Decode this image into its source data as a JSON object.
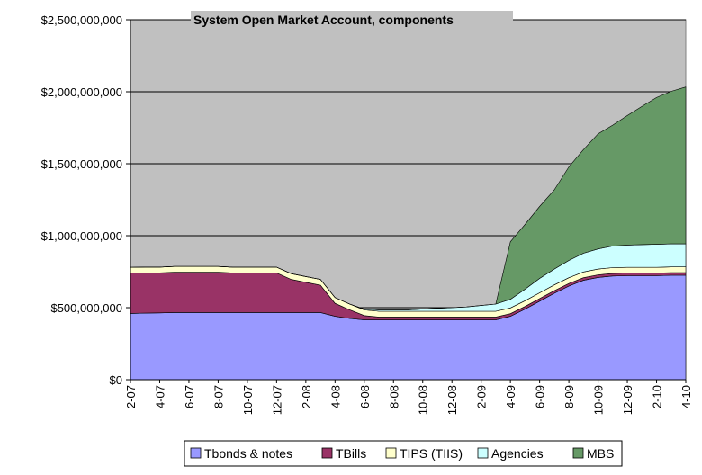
{
  "chart_data": {
    "type": "area",
    "stacked": true,
    "title": "System Open Market Account, components",
    "xlabel": "",
    "ylabel": "",
    "ylim": [
      0,
      2500000000
    ],
    "y_ticks": [
      0,
      500000000,
      1000000000,
      1500000000,
      2000000000,
      2500000000
    ],
    "y_tick_labels": [
      "$0",
      "$500,000,000",
      "$1,000,000,000",
      "$1,500,000,000",
      "$2,000,000,000",
      "$2,500,000,000"
    ],
    "x_tick_labels": [
      "2-07",
      "4-07",
      "6-07",
      "8-07",
      "10-07",
      "12-07",
      "2-08",
      "4-08",
      "6-08",
      "8-08",
      "10-08",
      "12-08",
      "2-09",
      "4-09",
      "6-09",
      "8-09",
      "10-09",
      "12-09",
      "2-10",
      "4-10"
    ],
    "grid": "horizontal",
    "legend_position": "bottom",
    "plot_background": "#c0c0c0",
    "x": [
      "2-07",
      "3-07",
      "4-07",
      "5-07",
      "6-07",
      "7-07",
      "8-07",
      "9-07",
      "10-07",
      "11-07",
      "12-07",
      "1-08",
      "2-08",
      "3-08",
      "4-08",
      "5-08",
      "6-08",
      "7-08",
      "8-08",
      "9-08",
      "10-08",
      "11-08",
      "12-08",
      "1-09",
      "2-09",
      "3-09",
      "4-09",
      "5-09",
      "6-09",
      "7-09",
      "8-09",
      "9-09",
      "10-09",
      "11-09",
      "12-09",
      "1-10",
      "2-10",
      "3-10",
      "4-10"
    ],
    "series": [
      {
        "name": "Tbonds & notes",
        "color": "#9999ff",
        "values": [
          460000000,
          462000000,
          464000000,
          466000000,
          466000000,
          466000000,
          466000000,
          466000000,
          466000000,
          466000000,
          466000000,
          466000000,
          466000000,
          466000000,
          440000000,
          425000000,
          415000000,
          415000000,
          415000000,
          415000000,
          415000000,
          415000000,
          415000000,
          415000000,
          415000000,
          415000000,
          440000000,
          490000000,
          545000000,
          600000000,
          650000000,
          690000000,
          710000000,
          720000000,
          722000000,
          722000000,
          722000000,
          725000000,
          725000000
        ]
      },
      {
        "name": "TBills",
        "color": "#993366",
        "values": [
          280000000,
          280000000,
          278000000,
          280000000,
          280000000,
          280000000,
          280000000,
          275000000,
          275000000,
          275000000,
          275000000,
          230000000,
          210000000,
          190000000,
          90000000,
          60000000,
          30000000,
          20000000,
          20000000,
          20000000,
          20000000,
          20000000,
          20000000,
          20000000,
          20000000,
          20000000,
          18000000,
          18000000,
          18000000,
          18000000,
          18000000,
          18000000,
          18000000,
          18000000,
          18000000,
          18000000,
          18000000,
          18000000,
          18000000
        ]
      },
      {
        "name": "TIPS (TIIS)",
        "color": "#ffffcc",
        "values": [
          40000000,
          40000000,
          40000000,
          40000000,
          40000000,
          40000000,
          40000000,
          40000000,
          40000000,
          40000000,
          40000000,
          40000000,
          40000000,
          40000000,
          40000000,
          40000000,
          40000000,
          40000000,
          40000000,
          40000000,
          40000000,
          40000000,
          40000000,
          40000000,
          40000000,
          40000000,
          40000000,
          40000000,
          40000000,
          40000000,
          40000000,
          40000000,
          40000000,
          40000000,
          40000000,
          40000000,
          40000000,
          40000000,
          40000000
        ]
      },
      {
        "name": "Agencies",
        "color": "#ccffff",
        "values": [
          0,
          0,
          0,
          0,
          0,
          0,
          0,
          0,
          0,
          0,
          0,
          0,
          0,
          0,
          0,
          0,
          5000000,
          10000000,
          10000000,
          10000000,
          15000000,
          20000000,
          25000000,
          30000000,
          40000000,
          50000000,
          60000000,
          80000000,
          100000000,
          110000000,
          120000000,
          130000000,
          140000000,
          150000000,
          155000000,
          158000000,
          160000000,
          160000000,
          160000000
        ]
      },
      {
        "name": "MBS",
        "color": "#669966",
        "values": [
          0,
          0,
          0,
          0,
          0,
          0,
          0,
          0,
          0,
          0,
          0,
          0,
          0,
          0,
          0,
          0,
          0,
          0,
          0,
          0,
          0,
          0,
          0,
          0,
          0,
          0,
          400000000,
          450000000,
          500000000,
          550000000,
          650000000,
          720000000,
          800000000,
          840000000,
          900000000,
          960000000,
          1020000000,
          1060000000,
          1090000000
        ]
      }
    ]
  }
}
